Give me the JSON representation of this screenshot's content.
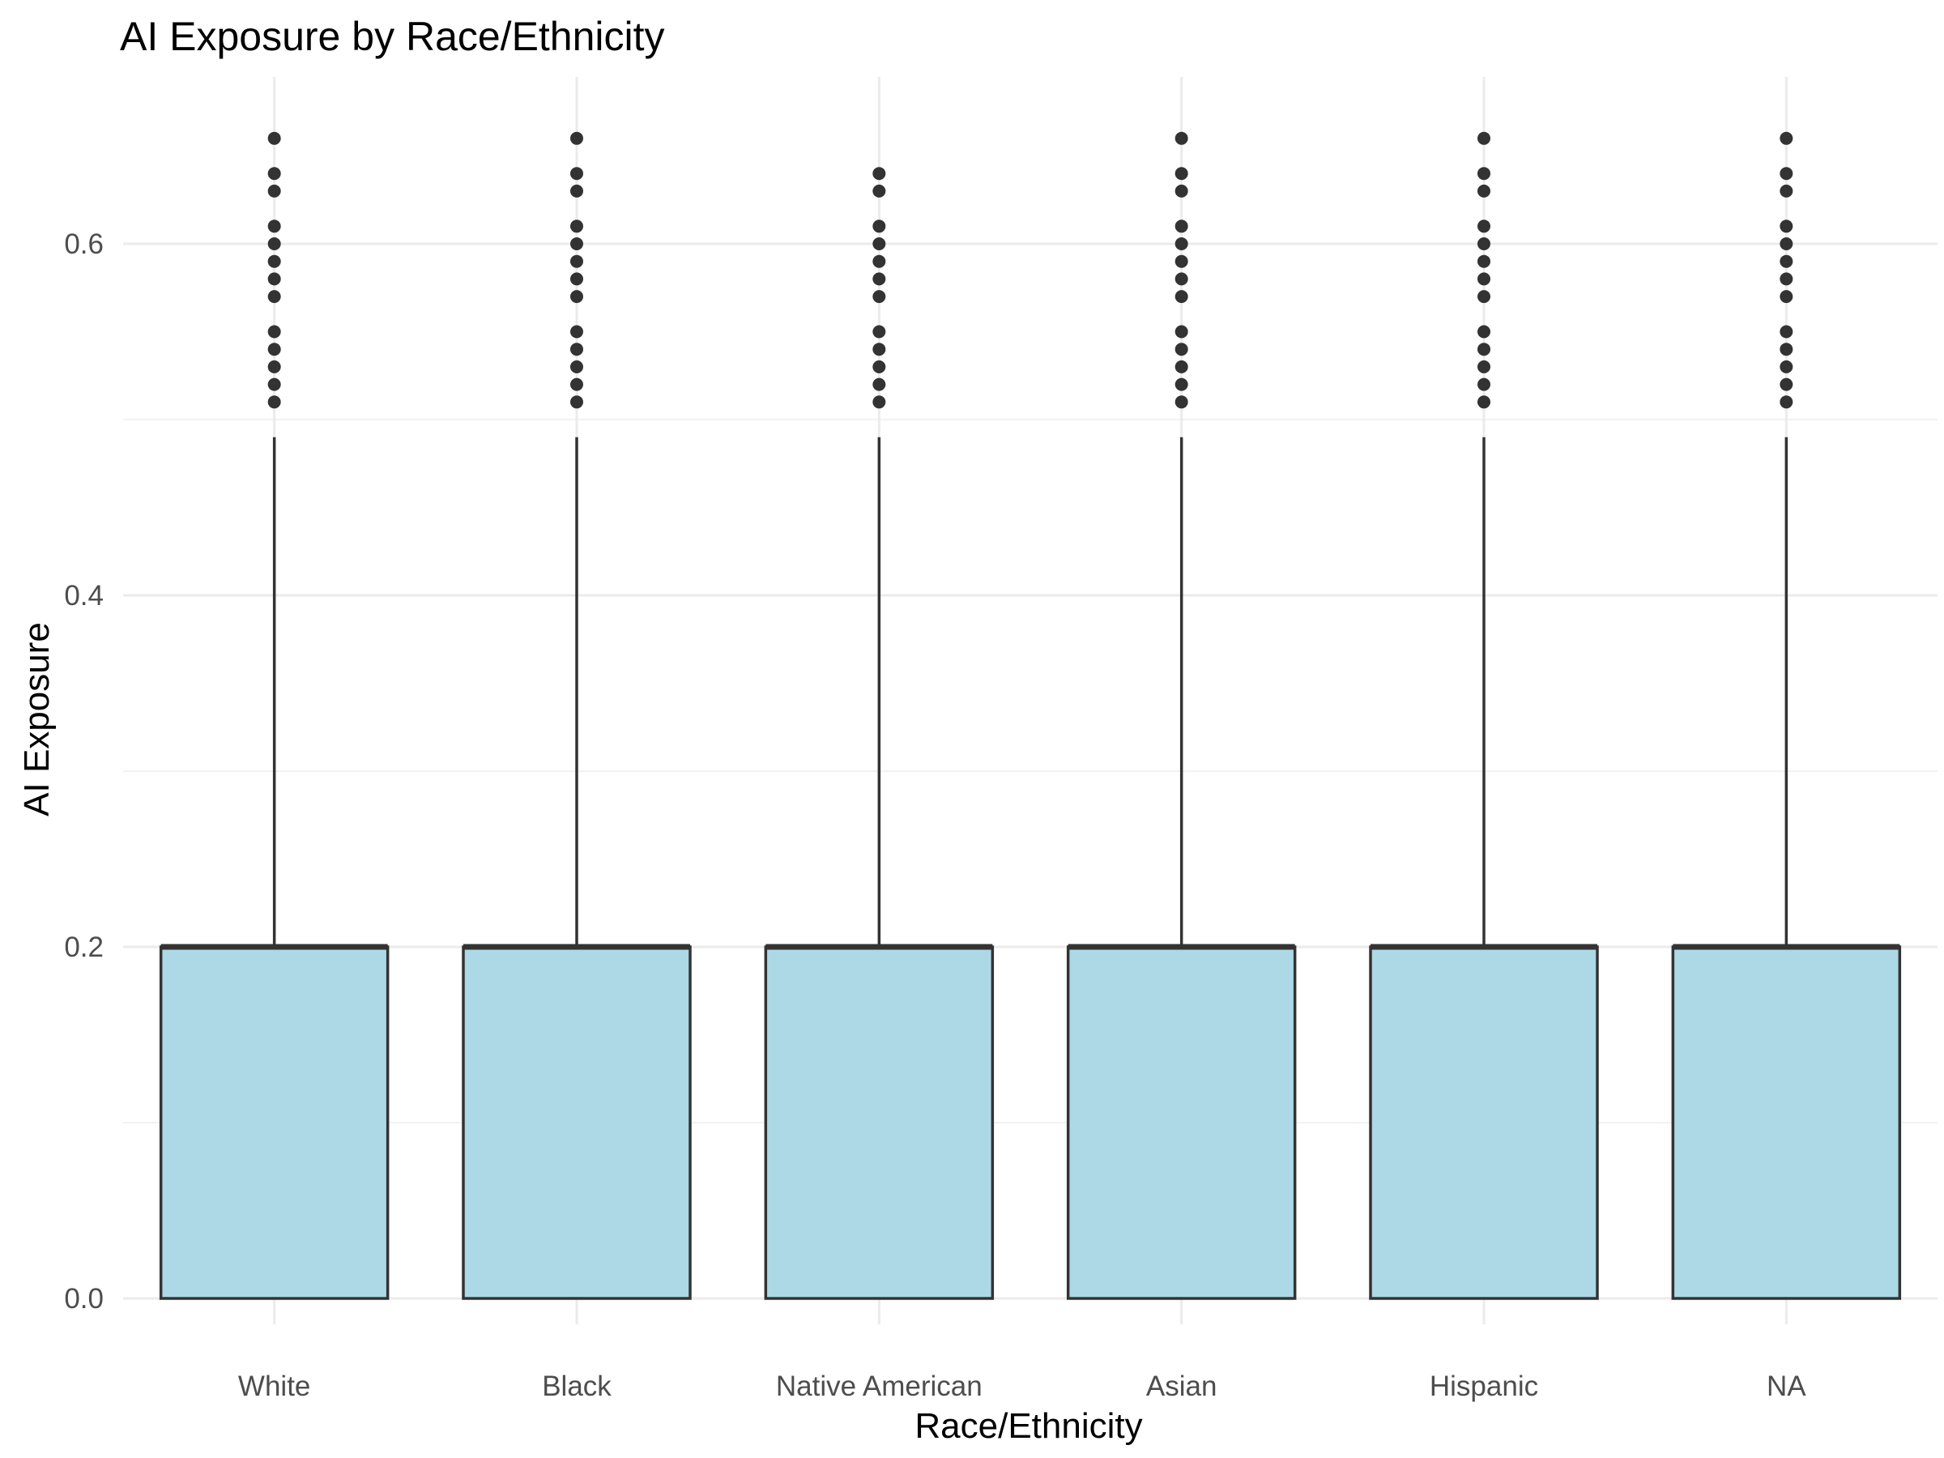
{
  "chart_data": {
    "type": "boxplot",
    "title": "AI Exposure by Race/Ethnicity",
    "xlabel": "Race/Ethnicity",
    "ylabel": "AI Exposure",
    "categories": [
      "White",
      "Black",
      "Native American",
      "Asian",
      "Hispanic",
      "NA"
    ],
    "ylim": [
      -0.02,
      0.68
    ],
    "yticks": [
      0.0,
      0.2,
      0.4,
      0.6
    ],
    "ytick_labels": [
      "0.0",
      "0.2",
      "0.4",
      "0.6"
    ],
    "grid": true,
    "colors": {
      "box_fill": "#add8e6",
      "box_stroke": "#333333",
      "outlier": "#333333"
    },
    "boxes": [
      {
        "category": "White",
        "lower_whisker": 0.0,
        "q1": 0.0,
        "median": 0.2,
        "q3": 0.2,
        "upper_whisker": 0.49,
        "outliers": [
          0.51,
          0.52,
          0.53,
          0.54,
          0.55,
          0.57,
          0.58,
          0.59,
          0.6,
          0.61,
          0.63,
          0.64,
          0.66
        ]
      },
      {
        "category": "Black",
        "lower_whisker": 0.0,
        "q1": 0.0,
        "median": 0.2,
        "q3": 0.2,
        "upper_whisker": 0.49,
        "outliers": [
          0.51,
          0.52,
          0.53,
          0.54,
          0.55,
          0.57,
          0.58,
          0.59,
          0.6,
          0.61,
          0.63,
          0.64,
          0.66
        ]
      },
      {
        "category": "Native American",
        "lower_whisker": 0.0,
        "q1": 0.0,
        "median": 0.2,
        "q3": 0.2,
        "upper_whisker": 0.49,
        "outliers": [
          0.51,
          0.52,
          0.53,
          0.54,
          0.55,
          0.57,
          0.58,
          0.59,
          0.6,
          0.61,
          0.63,
          0.64
        ]
      },
      {
        "category": "Asian",
        "lower_whisker": 0.0,
        "q1": 0.0,
        "median": 0.2,
        "q3": 0.2,
        "upper_whisker": 0.49,
        "outliers": [
          0.51,
          0.52,
          0.53,
          0.54,
          0.55,
          0.57,
          0.58,
          0.59,
          0.6,
          0.61,
          0.63,
          0.64,
          0.66
        ]
      },
      {
        "category": "Hispanic",
        "lower_whisker": 0.0,
        "q1": 0.0,
        "median": 0.2,
        "q3": 0.2,
        "upper_whisker": 0.49,
        "outliers": [
          0.51,
          0.52,
          0.53,
          0.54,
          0.55,
          0.57,
          0.58,
          0.59,
          0.6,
          0.61,
          0.63,
          0.64,
          0.66
        ]
      },
      {
        "category": "NA",
        "lower_whisker": 0.0,
        "q1": 0.0,
        "median": 0.2,
        "q3": 0.2,
        "upper_whisker": 0.49,
        "outliers": [
          0.51,
          0.52,
          0.53,
          0.54,
          0.55,
          0.57,
          0.58,
          0.59,
          0.6,
          0.61,
          0.63,
          0.64,
          0.66
        ]
      }
    ]
  }
}
